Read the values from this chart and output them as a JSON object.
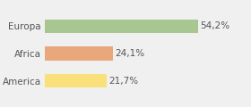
{
  "categories": [
    "America",
    "Africa",
    "Europa"
  ],
  "values": [
    21.7,
    24.1,
    54.2
  ],
  "bar_colors": [
    "#f9e07a",
    "#e8a87c",
    "#a8c68f"
  ],
  "labels": [
    "21,7%",
    "24,1%",
    "54,2%"
  ],
  "xlim": [
    0,
    72
  ],
  "background_color": "#f0f0f0",
  "bar_height": 0.5,
  "label_fontsize": 7.5,
  "tick_fontsize": 7.5,
  "label_color": "#555555",
  "tick_color": "#555555"
}
